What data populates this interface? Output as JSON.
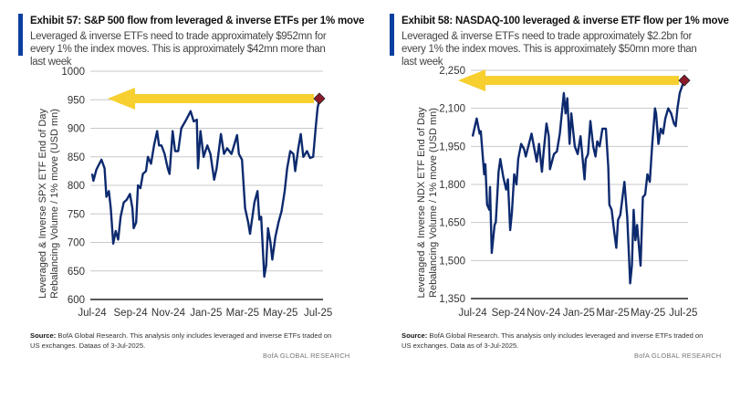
{
  "colors": {
    "accent_bar": "#0a3fa0",
    "line": "#0d2a6e",
    "arrow": "#f7cf2f",
    "marker": "#8b1a2b",
    "grid": "#c8c8c8"
  },
  "charts": [
    {
      "title": "Exhibit 57: S&P 500 flow from leveraged & inverse ETFs per 1% move",
      "subtitle": "Leveraged & inverse ETFs need to trade approximately $952mn for every 1% the index moves. This is approximately $42mn more than last week",
      "source_label": "Source:",
      "source_text": "BofA Global Research.  This analysis only includes leveraged and inverse ETFs traded on US exchanges.  Dataas of 3-Jul-2025.",
      "brand": "BofA GLOBAL RESEARCH"
    },
    {
      "title": "Exhibit 58: NASDAQ-100 leveraged & inverse ETF flow per 1% move",
      "subtitle": "Leveraged & inverse ETFs need to trade approximately $2.2bn for every 1% the index moves. This is approximately $50mn more than last week",
      "source_label": "Source:",
      "source_text": "BofA Global Research.  This analysis only includes leveraged and inverse ETFs traded on US exchanges.  Data as of 3-Jul-2025.",
      "brand": "BofA GLOBAL RESEARCH"
    }
  ],
  "chart_data": [
    {
      "type": "line",
      "ylabel": "Leveraged & Inverse SPX ETF End of Day Rebalancing Volume / 1% move (USD mn)",
      "ylim": [
        600,
        1000
      ],
      "yticks": [
        "600",
        "650",
        "700",
        "750",
        "800",
        "850",
        "900",
        "950",
        "1000"
      ],
      "ytick_values": [
        600,
        650,
        700,
        750,
        800,
        850,
        900,
        950,
        1000
      ],
      "xlim": [
        "2024-07-01",
        "2025-07-03"
      ],
      "xticks": [
        "Jul-24",
        "Sep-24",
        "Nov-24",
        "Jan-25",
        "Mar-25",
        "May-25",
        "Jul-25"
      ],
      "xtick_dates": [
        "2024-07-01",
        "2024-09-01",
        "2024-11-01",
        "2025-01-01",
        "2025-03-01",
        "2025-05-01",
        "2025-07-01"
      ],
      "grid": true,
      "latest": {
        "date": "2025-07-03",
        "value": 952
      },
      "annotation": "left-pointing arrow at latest value",
      "x": [
        "2024-07-01",
        "2024-07-03",
        "2024-07-08",
        "2024-07-16",
        "2024-07-21",
        "2024-07-24",
        "2024-07-28",
        "2024-07-31",
        "2024-08-04",
        "2024-08-08",
        "2024-08-12",
        "2024-08-16",
        "2024-08-21",
        "2024-08-26",
        "2024-08-31",
        "2024-09-04",
        "2024-09-06",
        "2024-09-10",
        "2024-09-13",
        "2024-09-17",
        "2024-09-21",
        "2024-09-26",
        "2024-09-29",
        "2024-10-04",
        "2024-10-09",
        "2024-10-14",
        "2024-10-17",
        "2024-10-21",
        "2024-10-26",
        "2024-10-31",
        "2024-11-03",
        "2024-11-08",
        "2024-11-12",
        "2024-11-17",
        "2024-11-22",
        "2024-11-30",
        "2024-12-07",
        "2024-12-12",
        "2024-12-17",
        "2024-12-19",
        "2024-12-23",
        "2024-12-28",
        "2025-01-03",
        "2025-01-08",
        "2025-01-14",
        "2025-01-18",
        "2025-01-25",
        "2025-01-30",
        "2025-02-04",
        "2025-02-11",
        "2025-02-20",
        "2025-02-23",
        "2025-02-28",
        "2025-03-05",
        "2025-03-10",
        "2025-03-13",
        "2025-03-20",
        "2025-03-25",
        "2025-03-28",
        "2025-03-31",
        "2025-04-05",
        "2025-04-08",
        "2025-04-11",
        "2025-04-15",
        "2025-04-18",
        "2025-04-23",
        "2025-04-28",
        "2025-05-03",
        "2025-05-08",
        "2025-05-12",
        "2025-05-17",
        "2025-05-22",
        "2025-05-25",
        "2025-05-30",
        "2025-06-03",
        "2025-06-07",
        "2025-06-13",
        "2025-06-18",
        "2025-06-23",
        "2025-06-27",
        "2025-06-30",
        "2025-07-03"
      ],
      "y": [
        820,
        808,
        828,
        845,
        830,
        780,
        790,
        760,
        698,
        720,
        705,
        745,
        770,
        775,
        785,
        760,
        725,
        735,
        800,
        795,
        820,
        825,
        850,
        838,
        870,
        895,
        870,
        870,
        855,
        830,
        820,
        895,
        860,
        860,
        900,
        915,
        930,
        912,
        915,
        830,
        895,
        850,
        870,
        855,
        810,
        830,
        890,
        855,
        865,
        855,
        888,
        855,
        845,
        760,
        735,
        715,
        770,
        790,
        740,
        745,
        640,
        660,
        725,
        700,
        670,
        710,
        735,
        755,
        790,
        830,
        860,
        855,
        825,
        865,
        890,
        850,
        860,
        848,
        850,
        900,
        935,
        952
      ]
    },
    {
      "type": "line",
      "ylabel": "Leveraged & Inverse NDX ETF End of Day Rebalancing Volume / 1% move (USD mn)",
      "ylim": [
        1350,
        2250
      ],
      "yticks": [
        "1,350",
        "1,500",
        "1,650",
        "1,800",
        "1,950",
        "2,100",
        "2,250"
      ],
      "ytick_values": [
        1350,
        1500,
        1650,
        1800,
        1950,
        2100,
        2250
      ],
      "xlim": [
        "2024-07-01",
        "2025-07-03"
      ],
      "xticks": [
        "Jul-24",
        "Sep-24",
        "Nov-24",
        "Jan-25",
        "Mar-25",
        "May-25",
        "Jul-25"
      ],
      "xtick_dates": [
        "2024-07-01",
        "2024-09-01",
        "2024-11-01",
        "2025-01-01",
        "2025-03-01",
        "2025-05-01",
        "2025-07-01"
      ],
      "grid": true,
      "latest": {
        "date": "2025-07-03",
        "value": 2210
      },
      "annotation": "left-pointing arrow at latest value",
      "x": [
        "2024-07-01",
        "2024-07-08",
        "2024-07-13",
        "2024-07-15",
        "2024-07-21",
        "2024-07-23",
        "2024-07-26",
        "2024-07-30",
        "2024-07-31",
        "2024-08-03",
        "2024-08-08",
        "2024-08-10",
        "2024-08-15",
        "2024-08-18",
        "2024-08-23",
        "2024-08-28",
        "2024-08-31",
        "2024-09-04",
        "2024-09-07",
        "2024-09-11",
        "2024-09-15",
        "2024-09-18",
        "2024-09-23",
        "2024-09-28",
        "2024-10-01",
        "2024-10-11",
        "2024-10-16",
        "2024-10-20",
        "2024-10-24",
        "2024-10-29",
        "2024-11-01",
        "2024-11-06",
        "2024-11-10",
        "2024-11-12",
        "2024-11-19",
        "2024-11-24",
        "2024-11-29",
        "2024-12-06",
        "2024-12-09",
        "2024-12-12",
        "2024-12-16",
        "2024-12-19",
        "2024-12-25",
        "2024-12-30",
        "2025-01-04",
        "2025-01-11",
        "2025-01-13",
        "2025-01-17",
        "2025-01-21",
        "2025-01-26",
        "2025-01-30",
        "2025-02-02",
        "2025-02-06",
        "2025-02-11",
        "2025-02-17",
        "2025-02-21",
        "2025-02-23",
        "2025-02-27",
        "2025-03-03",
        "2025-03-07",
        "2025-03-10",
        "2025-03-14",
        "2025-03-21",
        "2025-03-26",
        "2025-03-31",
        "2025-04-03",
        "2025-04-06",
        "2025-04-09",
        "2025-04-12",
        "2025-04-15",
        "2025-04-18",
        "2025-04-22",
        "2025-04-26",
        "2025-04-30",
        "2025-05-04",
        "2025-05-08",
        "2025-05-13",
        "2025-05-15",
        "2025-05-19",
        "2025-05-23",
        "2025-05-27",
        "2025-05-31",
        "2025-06-05",
        "2025-06-10",
        "2025-06-15",
        "2025-06-18",
        "2025-06-21",
        "2025-06-25",
        "2025-07-01",
        "2025-07-03"
      ],
      "y": [
        1990,
        2060,
        2000,
        2010,
        1840,
        1880,
        1720,
        1700,
        1790,
        1530,
        1640,
        1650,
        1850,
        1900,
        1830,
        1780,
        1820,
        1620,
        1690,
        1840,
        1800,
        1900,
        1960,
        1940,
        1910,
        2000,
        1940,
        1890,
        1960,
        1850,
        1930,
        2040,
        1990,
        1860,
        1920,
        1930,
        2000,
        2160,
        2080,
        2140,
        1960,
        2080,
        1950,
        1920,
        1990,
        1820,
        1900,
        1920,
        2050,
        1950,
        1910,
        1970,
        1950,
        2020,
        2020,
        1870,
        1720,
        1700,
        1620,
        1550,
        1660,
        1680,
        1810,
        1670,
        1410,
        1480,
        1700,
        1580,
        1640,
        1560,
        1480,
        1750,
        1760,
        1840,
        1810,
        1950,
        2100,
        2080,
        1960,
        2020,
        2000,
        2060,
        2100,
        2080,
        2040,
        2030,
        2100,
        2160,
        2200,
        2210
      ]
    }
  ]
}
